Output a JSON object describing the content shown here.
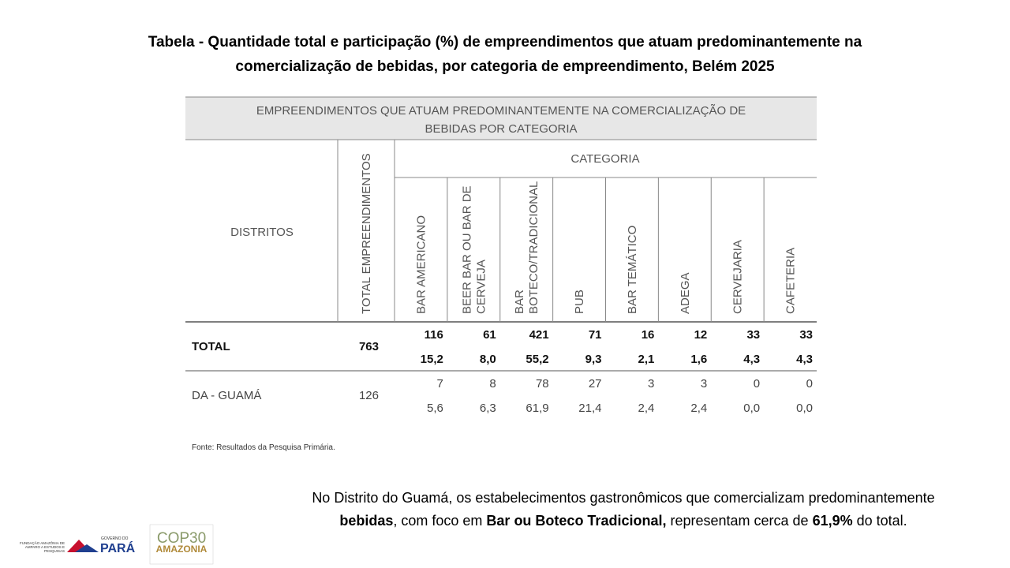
{
  "title": [
    "Tabela -  Quantidade total e participação (%) de empreendimentos que atuam predominantemente na",
    "comercialização de bebidas, por categoria de empreendimento, Belém 2025"
  ],
  "table": {
    "caption": [
      "EMPREENDIMENTOS QUE ATUAM PREDOMINANTEMENTE NA COMERCIALIZAÇÃO DE",
      "BEBIDAS POR CATEGORIA"
    ],
    "district_header": "DISTRITOS",
    "total_header": [
      "TOTAL EMPREENDIMENTOS"
    ],
    "category_header": "CATEGORIA",
    "categories": [
      [
        "BAR AMERICANO"
      ],
      [
        "BEER BAR OU BAR DE",
        "CERVEJA"
      ],
      [
        "BAR",
        "BOTECO/TRADICIONAL"
      ],
      [
        "PUB"
      ],
      [
        "BAR TEMÁTICO"
      ],
      [
        "ADEGA"
      ],
      [
        "CERVEJARIA"
      ],
      [
        "CAFETERIA"
      ]
    ],
    "rows": [
      {
        "district": "TOTAL",
        "bold": true,
        "total": "763",
        "counts": [
          "116",
          "61",
          "421",
          "71",
          "16",
          "12",
          "33",
          "33"
        ],
        "percents": [
          "15,2",
          "8,0",
          "55,2",
          "9,3",
          "2,1",
          "1,6",
          "4,3",
          "4,3"
        ]
      },
      {
        "district": "DA - GUAMÁ",
        "bold": false,
        "total": "126",
        "counts": [
          "7",
          "8",
          "78",
          "27",
          "3",
          "3",
          "0",
          "0"
        ],
        "percents": [
          "5,6",
          "6,3",
          "61,9",
          "21,4",
          "2,4",
          "2,4",
          "0,0",
          "0,0"
        ]
      }
    ]
  },
  "source": "Fonte: Resultados da Pesquisa Primária.",
  "paragraph": [
    [
      {
        "text": "No Distrito do Guamá, os estabelecimentos gastronômicos que comercializam predominantemente",
        "bold": false
      }
    ],
    [
      {
        "text": "bebidas",
        "bold": true
      },
      {
        "text": ", com foco em ",
        "bold": false
      },
      {
        "text": "Bar ou Boteco Tradicional,",
        "bold": true
      },
      {
        "text": " representam cerca de ",
        "bold": false
      },
      {
        "text": "61,9%",
        "bold": true
      },
      {
        "text": " do total.",
        "bold": false
      }
    ]
  ],
  "logos": {
    "fapespa": [
      "FUNDAÇÃO AMAZÔNIA DE",
      "AMPARO A ESTUDOS E",
      "PESQUISAS"
    ],
    "gov": "GOVERNO DO",
    "para": "PARÁ",
    "cop": "COP30",
    "amazonia": "AMAZONIA"
  }
}
